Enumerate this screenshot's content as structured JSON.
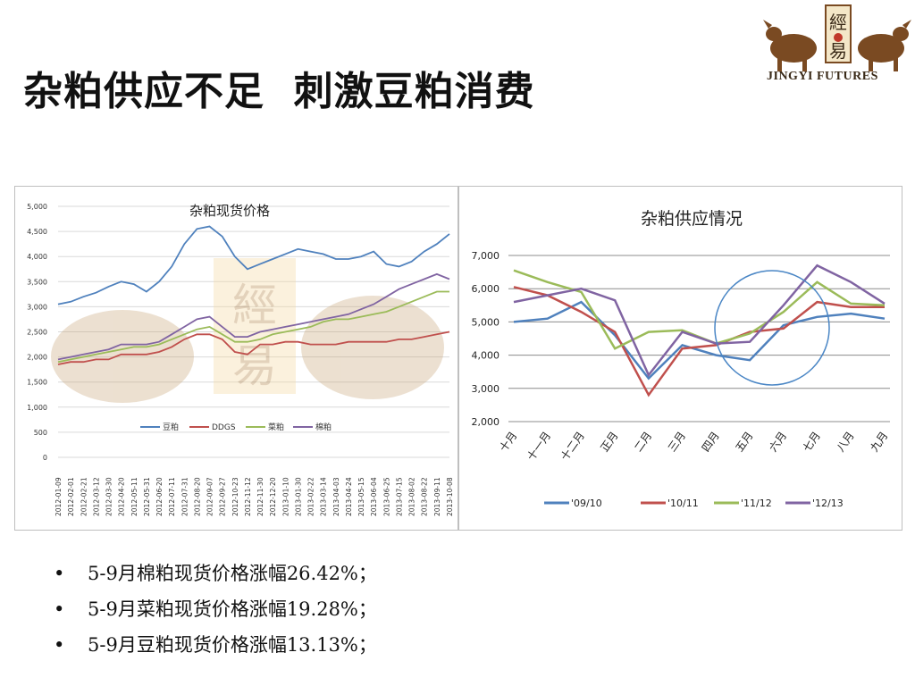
{
  "slide": {
    "title": "杂粕供应不足  刺激豆粕消费",
    "logo_text": "JINGYI FUTURES",
    "logo_glyph_1": "經",
    "logo_glyph_2": "易"
  },
  "bullets": [
    "5-9月棉粕现货价格涨幅26.42%；",
    "5-9月菜粕现货价格涨幅19.28%；",
    "5-9月豆粕现货价格涨幅13.13%；"
  ],
  "bullet_symbol": "•",
  "chart_data": [
    {
      "type": "line",
      "title": "杂粕现货价格",
      "ylim": [
        0,
        5000
      ],
      "yticks": [
        "0",
        "500",
        "1,000",
        "1,500",
        "2,000",
        "2,500",
        "3,000",
        "3,500",
        "4,000",
        "4,500",
        "5,000"
      ],
      "ytick_values": [
        0,
        500,
        1000,
        1500,
        2000,
        2500,
        3000,
        3500,
        4000,
        4500,
        5000
      ],
      "grid": true,
      "legend": "bottom",
      "watermark": "經易",
      "x": [
        "2012-01-09",
        "2012-02-01",
        "2012-02-21",
        "2012-03-12",
        "2012-03-30",
        "2012-04-20",
        "2012-05-11",
        "2012-05-31",
        "2012-06-20",
        "2012-07-11",
        "2012-07-31",
        "2012-08-20",
        "2012-09-07",
        "2012-09-27",
        "2012-10-23",
        "2012-11-12",
        "2012-11-30",
        "2012-12-20",
        "2013-01-10",
        "2013-01-30",
        "2013-02-22",
        "2013-03-14",
        "2013-04-03",
        "2013-04-24",
        "2013-05-15",
        "2013-06-04",
        "2013-06-25",
        "2013-07-15",
        "2013-08-02",
        "2013-08-22",
        "2013-09-11",
        "2013-10-08"
      ],
      "series": [
        {
          "name": "豆粕",
          "color": "#4f81bd",
          "values": [
            3050,
            3100,
            3200,
            3280,
            3400,
            3500,
            3450,
            3300,
            3500,
            3800,
            4250,
            4550,
            4600,
            4400,
            4000,
            3750,
            3850,
            3950,
            4050,
            4150,
            4100,
            4050,
            3950,
            3950,
            4000,
            4100,
            3850,
            3800,
            3900,
            4100,
            4250,
            4450
          ]
        },
        {
          "name": "DDGS",
          "color": "#c0504d",
          "values": [
            1850,
            1900,
            1900,
            1950,
            1950,
            2050,
            2050,
            2050,
            2100,
            2200,
            2350,
            2450,
            2450,
            2350,
            2100,
            2050,
            2250,
            2250,
            2300,
            2300,
            2250,
            2250,
            2250,
            2300,
            2300,
            2300,
            2300,
            2350,
            2350,
            2400,
            2450,
            2500
          ]
        },
        {
          "name": "菜粕",
          "color": "#9bbb59",
          "values": [
            1900,
            1950,
            2000,
            2050,
            2100,
            2150,
            2200,
            2200,
            2250,
            2350,
            2450,
            2550,
            2600,
            2450,
            2300,
            2300,
            2350,
            2450,
            2500,
            2550,
            2600,
            2700,
            2750,
            2750,
            2800,
            2850,
            2900,
            3000,
            3100,
            3200,
            3300,
            3300
          ]
        },
        {
          "name": "棉粕",
          "color": "#8064a2",
          "values": [
            1950,
            2000,
            2050,
            2100,
            2150,
            2250,
            2250,
            2250,
            2300,
            2450,
            2600,
            2750,
            2800,
            2600,
            2400,
            2400,
            2500,
            2550,
            2600,
            2650,
            2700,
            2750,
            2800,
            2850,
            2950,
            3050,
            3200,
            3350,
            3450,
            3550,
            3650,
            3550
          ]
        }
      ]
    },
    {
      "type": "line",
      "title": "杂粕供应情况",
      "ylim": [
        2000,
        7000
      ],
      "yticks": [
        "2,000",
        "3,000",
        "4,000",
        "5,000",
        "6,000",
        "7,000"
      ],
      "ytick_values": [
        2000,
        3000,
        4000,
        5000,
        6000,
        7000
      ],
      "grid": true,
      "legend": "bottom",
      "categories": [
        "十月",
        "十一月",
        "十二月",
        "正月",
        "二月",
        "三月",
        "四月",
        "五月",
        "六月",
        "七月",
        "八月",
        "九月"
      ],
      "series": [
        {
          "name": "'09/10",
          "color": "#4f81bd",
          "values": [
            5000,
            5100,
            5600,
            4600,
            3300,
            4300,
            4000,
            3850,
            4900,
            5150,
            5250,
            5100
          ]
        },
        {
          "name": "'10/11",
          "color": "#c0504d",
          "values": [
            6050,
            5800,
            5300,
            4700,
            2800,
            4200,
            4300,
            4700,
            4800,
            5600,
            5450,
            5450
          ]
        },
        {
          "name": "'11/12",
          "color": "#9bbb59",
          "values": [
            6550,
            6200,
            5900,
            4200,
            4700,
            4750,
            4350,
            4650,
            5300,
            6200,
            5550,
            5500
          ]
        },
        {
          "name": "'12/13",
          "color": "#8064a2",
          "values": [
            5600,
            5800,
            6000,
            5650,
            3400,
            4700,
            4350,
            4400,
            5500,
            6700,
            6200,
            5550
          ]
        }
      ],
      "highlight_circle": true
    }
  ]
}
